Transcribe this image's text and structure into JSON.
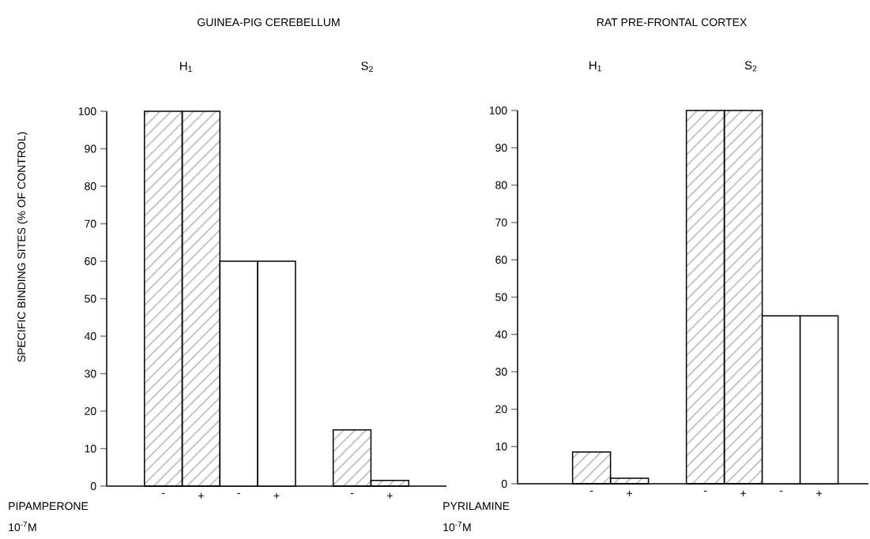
{
  "chart_data": [
    {
      "type": "bar",
      "title": "GUINEA-PIG CEREBELLUM",
      "ylabel": "SPECIFIC BINDING SITES (% OF CONTROL)",
      "xlabel": "PIPAMPERONE",
      "annotations": [
        "H$_{1}$",
        "S$_{2}$",
        "10$^{-7}$M"
      ],
      "categories": [
        "-",
        "+",
        "-",
        "+",
        null,
        "-",
        "+"
      ],
      "values": [
        100,
        100,
        60,
        60,
        null,
        15,
        1.5
      ],
      "colors": [
        "#000000",
        "#000000",
        "#ffffff",
        "#ffffff",
        null,
        "#000000",
        "#000000"
      ],
      "ylim": [
        0,
        100
      ],
      "yticks": [
        0,
        10,
        20,
        30,
        40,
        50,
        60,
        70,
        80,
        90,
        100
      ]
    },
    {
      "type": "bar",
      "title": "RAT PRE-FRONTAL CORTEX",
      "xlabel": "PYRILAMINE",
      "annotations": [
        "H$_{1}$",
        "S$_{2}$",
        "10$^{-7}$M"
      ],
      "categories": [
        "-",
        "+",
        null,
        "-",
        "+",
        "-",
        "+"
      ],
      "values": [
        8.5,
        1.5,
        null,
        100,
        100,
        45,
        45
      ],
      "colors": [
        "#000000",
        "#000000",
        null,
        "#000000",
        "#000000",
        "#ffffff",
        "#ffffff"
      ],
      "ylim": [
        0,
        100
      ],
      "yticks": [
        0,
        10,
        20,
        30,
        40,
        50,
        60,
        70,
        80,
        90,
        100
      ]
    }
  ]
}
